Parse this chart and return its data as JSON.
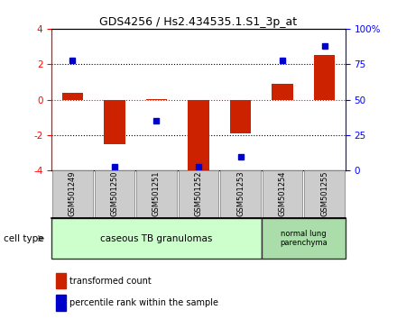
{
  "title": "GDS4256 / Hs2.434535.1.S1_3p_at",
  "samples": [
    "GSM501249",
    "GSM501250",
    "GSM501251",
    "GSM501252",
    "GSM501253",
    "GSM501254",
    "GSM501255"
  ],
  "transformed_counts": [
    0.4,
    -2.5,
    0.05,
    -4.1,
    -1.9,
    0.9,
    2.5
  ],
  "percentile_ranks": [
    78,
    3,
    35,
    3,
    10,
    78,
    88
  ],
  "ylim_left": [
    -4,
    4
  ],
  "ylim_right": [
    0,
    100
  ],
  "yticks_left": [
    -4,
    -2,
    0,
    2,
    4
  ],
  "yticks_right": [
    0,
    25,
    50,
    75,
    100
  ],
  "ytick_labels_right": [
    "0",
    "25",
    "50",
    "75",
    "100%"
  ],
  "bar_color": "#cc2200",
  "dot_color": "#0000cc",
  "group1_label": "caseous TB granulomas",
  "group2_label": "normal lung\nparenchyma",
  "group1_color": "#ccffcc",
  "group2_color": "#aaddaa",
  "cell_type_label": "cell type",
  "legend_red_label": "transformed count",
  "legend_blue_label": "percentile rank within the sample",
  "sample_box_color": "#cccccc",
  "plot_bg": "#ffffff",
  "title_fontsize": 9,
  "bar_width": 0.5
}
